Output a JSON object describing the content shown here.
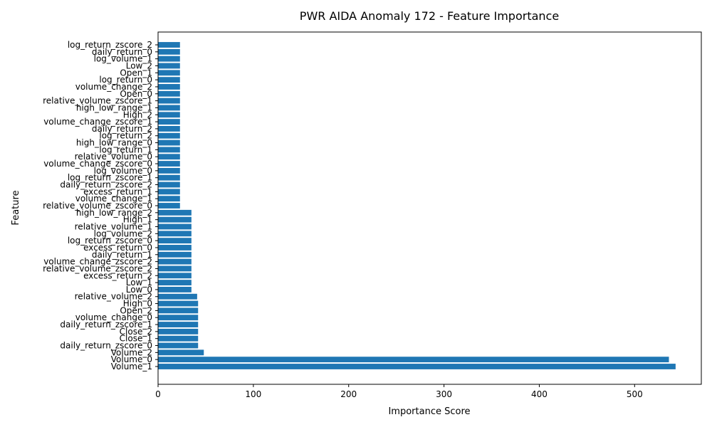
{
  "chart_data": {
    "type": "bar",
    "orientation": "horizontal",
    "title": "PWR AIDA Anomaly 172 - Feature Importance",
    "xlabel": "Importance Score",
    "ylabel": "Feature",
    "xlim": [
      0,
      570
    ],
    "xticks": [
      0,
      100,
      200,
      300,
      400,
      500
    ],
    "grid": false,
    "bar_color": "#1f77b4",
    "categories": [
      "Volume_1",
      "Volume_0",
      "Volume_2",
      "daily_return_zscore_0",
      "Close_1",
      "Close_2",
      "daily_return_zscore_1",
      "volume_change_0",
      "Open_2",
      "High_0",
      "relative_volume_2",
      "Low_0",
      "Low_1",
      "excess_return_2",
      "relative_volume_zscore_2",
      "volume_change_zscore_2",
      "daily_return_1",
      "excess_return_0",
      "log_return_zscore_0",
      "log_volume_2",
      "relative_volume_1",
      "High_1",
      "high_low_range_2",
      "relative_volume_zscore_0",
      "volume_change_1",
      "excess_return_1",
      "daily_return_zscore_2",
      "log_return_zscore_1",
      "log_volume_0",
      "volume_change_zscore_0",
      "relative_volume_0",
      "log_return_1",
      "high_low_range_0",
      "log_return_2",
      "daily_return_2",
      "volume_change_zscore_1",
      "High_2",
      "high_low_range_1",
      "relative_volume_zscore_1",
      "Open_0",
      "volume_change_2",
      "log_return_0",
      "Open_1",
      "Low_2",
      "log_volume_1",
      "daily_return_0",
      "log_return_zscore_2"
    ],
    "values": [
      543,
      536,
      48,
      42,
      42,
      42,
      42,
      42,
      42,
      42,
      41,
      35,
      35,
      35,
      35,
      35,
      35,
      35,
      35,
      35,
      35,
      35,
      35,
      23,
      23,
      23,
      23,
      23,
      23,
      23,
      23,
      23,
      23,
      23,
      23,
      23,
      23,
      23,
      23,
      23,
      23,
      23,
      23,
      23,
      23,
      23,
      23
    ]
  }
}
